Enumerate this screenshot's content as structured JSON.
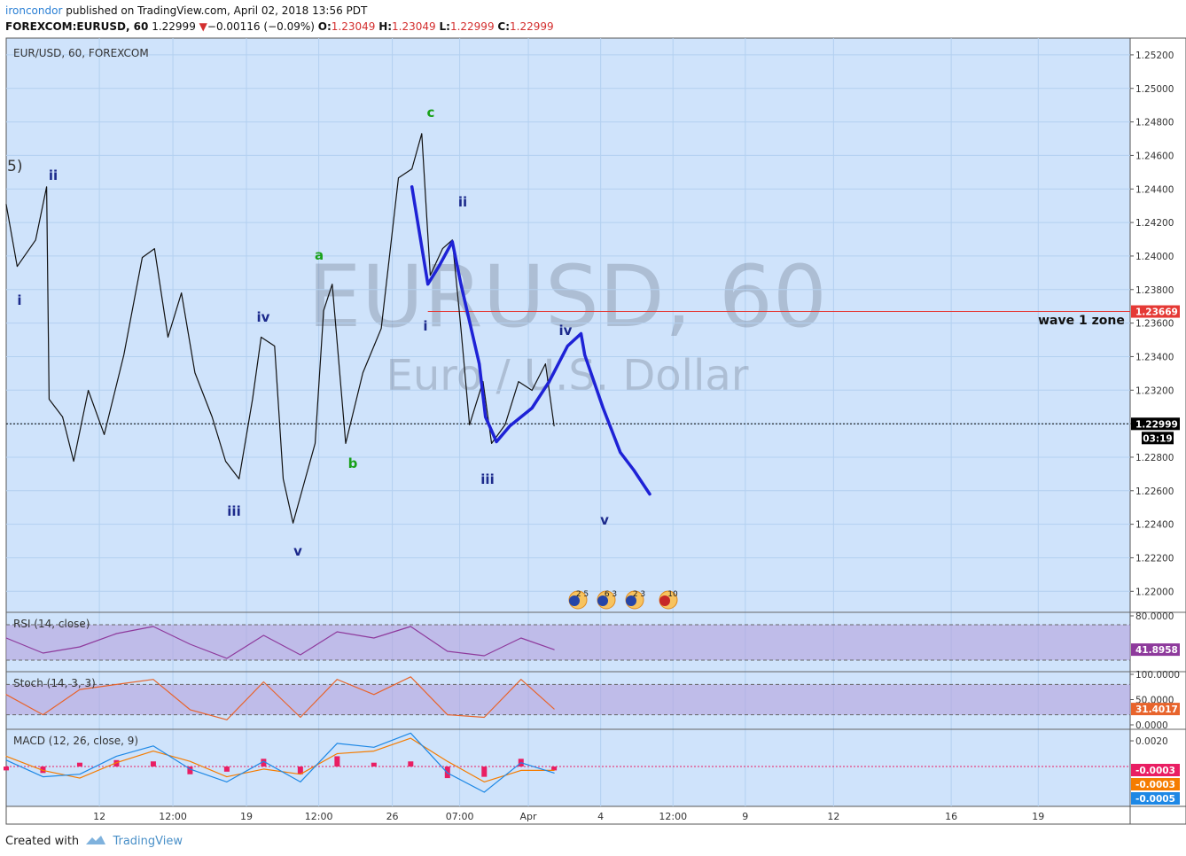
{
  "header": {
    "user": "ironcondor",
    "published": "published on TradingView.com, April 02, 2018 13:56 PDT",
    "symbol": "FOREXCOM:EURUSD, 60",
    "last": "1.22999",
    "arrow": "▼",
    "change": "−0.00116 (−0.09%)",
    "ohlc": [
      {
        "label": "O:",
        "value": "1.23049"
      },
      {
        "label": "H:",
        "value": "1.23049"
      },
      {
        "label": "L:",
        "value": "1.22999"
      },
      {
        "label": "C:",
        "value": "1.22999"
      }
    ]
  },
  "footer": {
    "text": "Created with",
    "brand": "TradingView"
  },
  "chart_data": [
    {
      "type": "line",
      "title": "EUR/USD, 60, FOREXCOM",
      "watermark": "EURUSD, 60",
      "watermark_sub": "Euro / U.S. Dollar",
      "grid": true,
      "xlim": [
        0,
        917
      ],
      "ylim": [
        1.2188,
        1.253
      ],
      "xticks": [
        {
          "value": 76,
          "label": "12"
        },
        {
          "value": 136,
          "label": "12:00"
        },
        {
          "value": 196,
          "label": "19"
        },
        {
          "value": 255,
          "label": "12:00"
        },
        {
          "value": 315,
          "label": "26"
        },
        {
          "value": 370,
          "label": "07:00"
        },
        {
          "value": 426,
          "label": "Apr"
        },
        {
          "value": 485,
          "label": "4"
        },
        {
          "value": 544,
          "label": "12:00"
        },
        {
          "value": 603,
          "label": "9"
        },
        {
          "value": 675,
          "label": "12"
        },
        {
          "value": 771,
          "label": "16"
        },
        {
          "value": 842,
          "label": "19"
        }
      ],
      "yticks": [
        {
          "value": 1.22,
          "label": "1.22000"
        },
        {
          "value": 1.222,
          "label": "1.22200"
        },
        {
          "value": 1.224,
          "label": "1.22400"
        },
        {
          "value": 1.226,
          "label": "1.22600"
        },
        {
          "value": 1.228,
          "label": "1.22800"
        },
        {
          "value": 1.23,
          "label": "1.23000"
        },
        {
          "value": 1.232,
          "label": "1.23200"
        },
        {
          "value": 1.234,
          "label": "1.23400"
        },
        {
          "value": 1.236,
          "label": "1.23600"
        },
        {
          "value": 1.238,
          "label": "1.23800"
        },
        {
          "value": 1.24,
          "label": "1.24000"
        },
        {
          "value": 1.242,
          "label": "1.24200"
        },
        {
          "value": 1.244,
          "label": "1.24400"
        },
        {
          "value": 1.246,
          "label": "1.24600"
        },
        {
          "value": 1.248,
          "label": "1.24800"
        },
        {
          "value": 1.25,
          "label": "1.25000"
        },
        {
          "value": 1.252,
          "label": "1.25200"
        }
      ],
      "series": [
        {
          "name": "EURUSD",
          "color": "#111111",
          "x": [
            0,
            9,
            24,
            33,
            35,
            46,
            55,
            67,
            80,
            96,
            111,
            121,
            132,
            143,
            154,
            168,
            179,
            190,
            201,
            208,
            219,
            226,
            234,
            244,
            252,
            259,
            266,
            277,
            291,
            306,
            320,
            331,
            339,
            346,
            356,
            364,
            371,
            378,
            389,
            396,
            407,
            418,
            429,
            440,
            447
          ],
          "values": [
            1.24308,
            1.23938,
            1.24096,
            1.24413,
            1.23146,
            1.2304,
            1.22776,
            1.23199,
            1.22935,
            1.2341,
            1.23991,
            1.24044,
            1.23516,
            1.2378,
            1.23304,
            1.2304,
            1.22776,
            1.22671,
            1.23146,
            1.23516,
            1.23463,
            1.22671,
            1.22407,
            1.22671,
            1.22882,
            1.23674,
            1.23832,
            1.22882,
            1.23304,
            1.23568,
            1.24466,
            1.2452,
            1.2473,
            1.23885,
            1.24044,
            1.24096,
            1.23568,
            1.22993,
            1.23251,
            1.22882,
            1.22993,
            1.23251,
            1.23199,
            1.23357,
            1.22987
          ]
        },
        {
          "name": "Projection",
          "color": "#1e22d6",
          "x": [
            331,
            344,
            353,
            364,
            371,
            386,
            391,
            400,
            411,
            429,
            443,
            458,
            469,
            472,
            487,
            501,
            512,
            525
          ],
          "values": [
            1.24413,
            1.23832,
            1.23938,
            1.24086,
            1.23832,
            1.23357,
            1.2304,
            1.22892,
            1.22987,
            1.23093,
            1.23251,
            1.23463,
            1.23537,
            1.2341,
            1.23093,
            1.22829,
            1.22723,
            1.2258
          ]
        }
      ],
      "levels": [
        {
          "value": 1.23669,
          "label": "1.23669",
          "color": "#e53935",
          "style": "solid"
        },
        {
          "value": 1.22999,
          "label": "1.22999",
          "color": "#000000",
          "style": "dotted"
        }
      ],
      "countdown": "03:19",
      "annotations": [
        {
          "text": "5)",
          "color": "#333333"
        },
        {
          "text": "ii",
          "color": "#1c2a8c"
        },
        {
          "text": "i",
          "color": "#1c2a8c"
        },
        {
          "text": "iii",
          "color": "#1c2a8c"
        },
        {
          "text": "iv",
          "color": "#1c2a8c"
        },
        {
          "text": "v",
          "color": "#1c2a8c"
        },
        {
          "text": "a",
          "color": "#19a119"
        },
        {
          "text": "b",
          "color": "#19a119"
        },
        {
          "text": "c",
          "color": "#19a119"
        },
        {
          "text": "ii",
          "color": "#1c2a8c"
        },
        {
          "text": "i",
          "color": "#1c2a8c"
        },
        {
          "text": "iii",
          "color": "#1c2a8c"
        },
        {
          "text": "iv",
          "color": "#1c2a8c"
        },
        {
          "text": "v",
          "color": "#1c2a8c"
        },
        {
          "text": "wave 1 zone",
          "color": "#111111"
        }
      ],
      "events": [
        "2 5",
        "6 3",
        "2 3",
        "10"
      ]
    },
    {
      "type": "line",
      "title": "RSI (14, close)",
      "xlim": [
        0,
        917
      ],
      "ylim": [
        18,
        83
      ],
      "yticks": [
        {
          "value": 80,
          "label": "80.0000"
        }
      ],
      "bands": [
        70,
        30
      ],
      "band_color": "#b39ddb",
      "series": [
        {
          "name": "RSI",
          "color": "#8e3a9c",
          "x": [
            0,
            30,
            60,
            90,
            120,
            150,
            180,
            210,
            240,
            270,
            300,
            330,
            360,
            390,
            420,
            447
          ],
          "values": [
            55,
            38,
            45,
            60,
            68,
            48,
            32,
            58,
            36,
            62,
            55,
            68,
            40,
            35,
            55,
            41.8958
          ],
          "last_label": "41.8958"
        }
      ]
    },
    {
      "type": "line",
      "title": "Stoch (14, 3, 3)",
      "xlim": [
        0,
        917
      ],
      "ylim": [
        -7,
        103.5
      ],
      "yticks": [
        {
          "value": 100,
          "label": "100.0000"
        },
        {
          "value": 50,
          "label": "50.0000"
        },
        {
          "value": 0,
          "label": "0.0000"
        }
      ],
      "bands": [
        80,
        20
      ],
      "band_color": "#b39ddb",
      "series": [
        {
          "name": "%K",
          "color": "#e8642c",
          "x": [
            0,
            30,
            60,
            90,
            120,
            150,
            180,
            210,
            240,
            270,
            300,
            330,
            360,
            390,
            420,
            447
          ],
          "values": [
            60,
            20,
            70,
            80,
            90,
            30,
            10,
            85,
            15,
            90,
            60,
            95,
            20,
            15,
            90,
            31.4017
          ],
          "last_label": "31.4017"
        }
      ]
    },
    {
      "type": "line",
      "title": "MACD (12, 26, close, 9)",
      "xlim": [
        0,
        917
      ],
      "ylim": [
        -0.0031,
        0.00283
      ],
      "yticks": [
        {
          "value": 0.002,
          "label": "0.0020"
        }
      ],
      "series": [
        {
          "name": "Histogram",
          "kind": "bar",
          "color": "#e91e63",
          "x": [
            0,
            30,
            60,
            90,
            120,
            150,
            180,
            210,
            240,
            270,
            300,
            330,
            360,
            390,
            420,
            447
          ],
          "values": [
            -0.0003,
            -0.0005,
            0.0003,
            0.0005,
            0.0004,
            -0.0006,
            -0.0004,
            0.0006,
            -0.0006,
            0.0008,
            0.0003,
            0.0004,
            -0.0009,
            -0.0008,
            0.0006,
            -0.0003
          ],
          "last_label": "-0.0003"
        },
        {
          "name": "Signal",
          "color": "#f57c00",
          "x": [
            0,
            30,
            60,
            90,
            120,
            150,
            180,
            210,
            240,
            270,
            300,
            330,
            360,
            390,
            420,
            447
          ],
          "values": [
            0.0008,
            -0.0003,
            -0.0009,
            0.0003,
            0.0012,
            0.0004,
            -0.0008,
            -0.0002,
            -0.0006,
            0.001,
            0.0012,
            0.0022,
            0.0004,
            -0.0012,
            -0.0003,
            -0.0003
          ],
          "last_label": "-0.0003"
        },
        {
          "name": "MACD",
          "color": "#1e88e5",
          "x": [
            0,
            30,
            60,
            90,
            120,
            150,
            180,
            210,
            240,
            270,
            300,
            330,
            360,
            390,
            420,
            447
          ],
          "values": [
            0.0005,
            -0.0008,
            -0.0006,
            0.0008,
            0.0016,
            -0.0002,
            -0.0012,
            0.0004,
            -0.0012,
            0.0018,
            0.0015,
            0.0026,
            -0.0005,
            -0.002,
            0.0003,
            -0.0005
          ],
          "last_label": "-0.0005"
        }
      ]
    }
  ]
}
